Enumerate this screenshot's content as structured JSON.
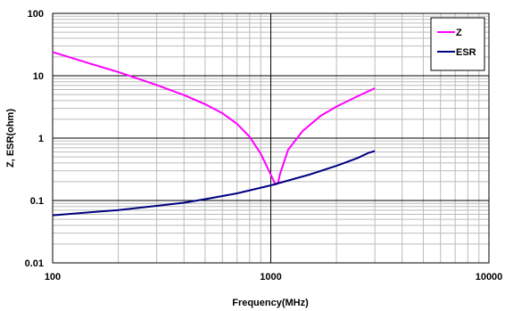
{
  "chart_data": {
    "type": "line",
    "xlabel": "Frequency(MHz)",
    "ylabel": "Z, ESR(ohm)",
    "x_scale": "log",
    "y_scale": "log",
    "xlim": [
      100,
      10000
    ],
    "ylim": [
      0.01,
      100
    ],
    "x_ticks": [
      {
        "value": 100,
        "label": "100"
      },
      {
        "value": 1000,
        "label": "1000"
      },
      {
        "value": 10000,
        "label": "10000"
      }
    ],
    "y_ticks": [
      {
        "value": 100,
        "label": "100"
      },
      {
        "value": 10,
        "label": "10"
      },
      {
        "value": 1,
        "label": "1"
      },
      {
        "value": 0.1,
        "label": "0.1"
      },
      {
        "value": 0.01,
        "label": "0.01"
      }
    ],
    "grid": true,
    "legend_position": "top-right",
    "series": [
      {
        "name": "Z",
        "color": "#ff00ff",
        "x": [
          100,
          150,
          200,
          300,
          400,
          500,
          600,
          700,
          800,
          900,
          1000,
          1050,
          1080,
          1100,
          1200,
          1400,
          1700,
          2000,
          2500,
          3000
        ],
        "y": [
          24,
          15.5,
          11.5,
          7.1,
          4.9,
          3.5,
          2.5,
          1.7,
          1.05,
          0.56,
          0.26,
          0.18,
          0.19,
          0.26,
          0.65,
          1.3,
          2.3,
          3.2,
          4.7,
          6.3
        ]
      },
      {
        "name": "ESR",
        "color": "#000080",
        "x": [
          100,
          150,
          200,
          300,
          400,
          500,
          700,
          1000,
          1500,
          2000,
          2500,
          2800,
          3000
        ],
        "y": [
          0.058,
          0.065,
          0.07,
          0.082,
          0.092,
          0.105,
          0.13,
          0.175,
          0.26,
          0.36,
          0.48,
          0.58,
          0.62
        ]
      }
    ]
  }
}
